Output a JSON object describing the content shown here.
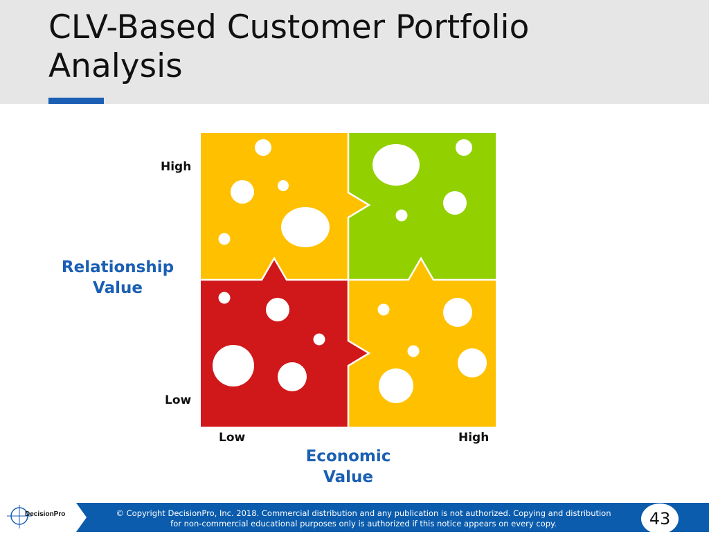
{
  "slide": {
    "title": "CLV-Based Customer Portfolio Analysis",
    "page_number": "43"
  },
  "matrix": {
    "y_high": "High",
    "y_low": "Low",
    "x_low": "Low",
    "x_high": "High",
    "y_title_line1": "Relationship",
    "y_title_line2": "Value",
    "x_title_line1": "Economic",
    "x_title_line2": "Value",
    "colors": {
      "top_left": "#ffc000",
      "top_right": "#92d000",
      "bottom_left": "#d0171a",
      "bottom_right": "#ffc000"
    }
  },
  "footer": {
    "logo_text": "DecisionPro",
    "copyright_line1": "© Copyright DecisionPro, Inc.  2018. Commercial distribution and any publication is not authorized. Copying and distribution",
    "copyright_line2": "for non-commercial educational purposes only is authorized if this notice appears on every copy."
  }
}
